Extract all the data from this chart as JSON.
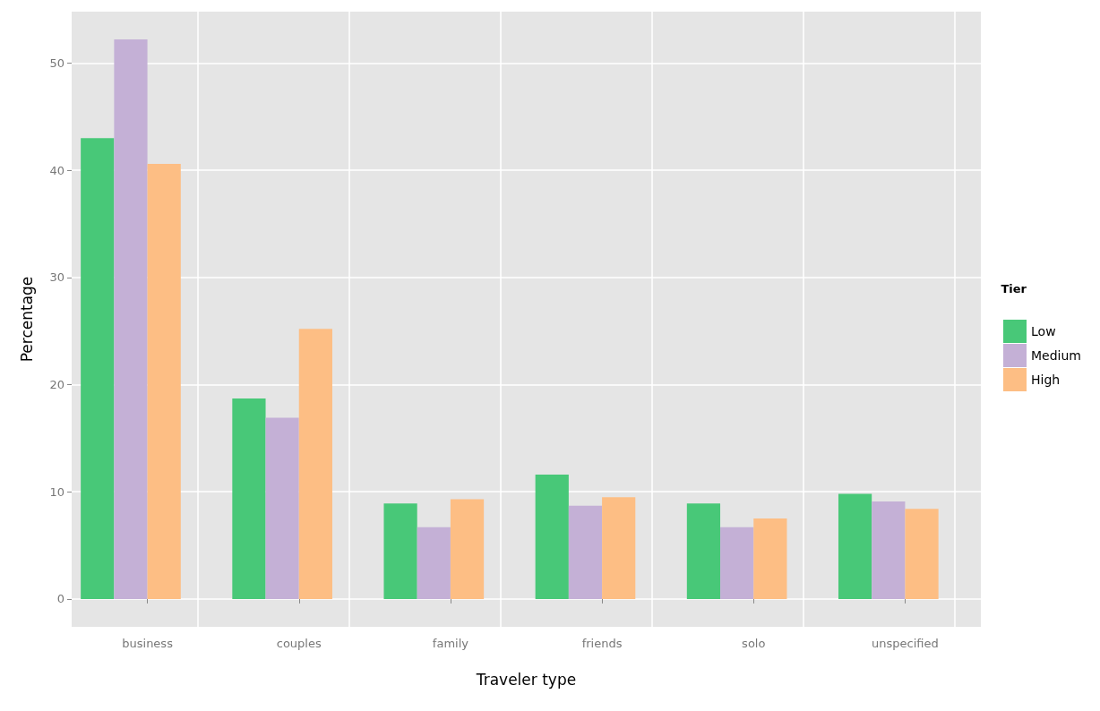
{
  "chart_data": {
    "type": "bar",
    "xlabel": "Traveler type",
    "ylabel": "Percentage",
    "legend_title": "Tier",
    "categories": [
      "business",
      "couples",
      "family",
      "friends",
      "solo",
      "unspecified"
    ],
    "series": [
      {
        "name": "Low",
        "color": "#48c878",
        "values": [
          43.0,
          18.7,
          8.9,
          11.6,
          8.9,
          9.8
        ]
      },
      {
        "name": "Medium",
        "color": "#c4b0d6",
        "values": [
          52.2,
          16.9,
          6.7,
          8.7,
          6.7,
          9.1
        ]
      },
      {
        "name": "High",
        "color": "#fdbe84",
        "values": [
          40.6,
          25.2,
          9.3,
          9.5,
          7.5,
          8.4
        ]
      }
    ],
    "ylim": [
      -2.6,
      54.8
    ],
    "yticks": [
      0,
      10,
      20,
      30,
      40,
      50
    ],
    "grid": true,
    "legend": "right"
  }
}
